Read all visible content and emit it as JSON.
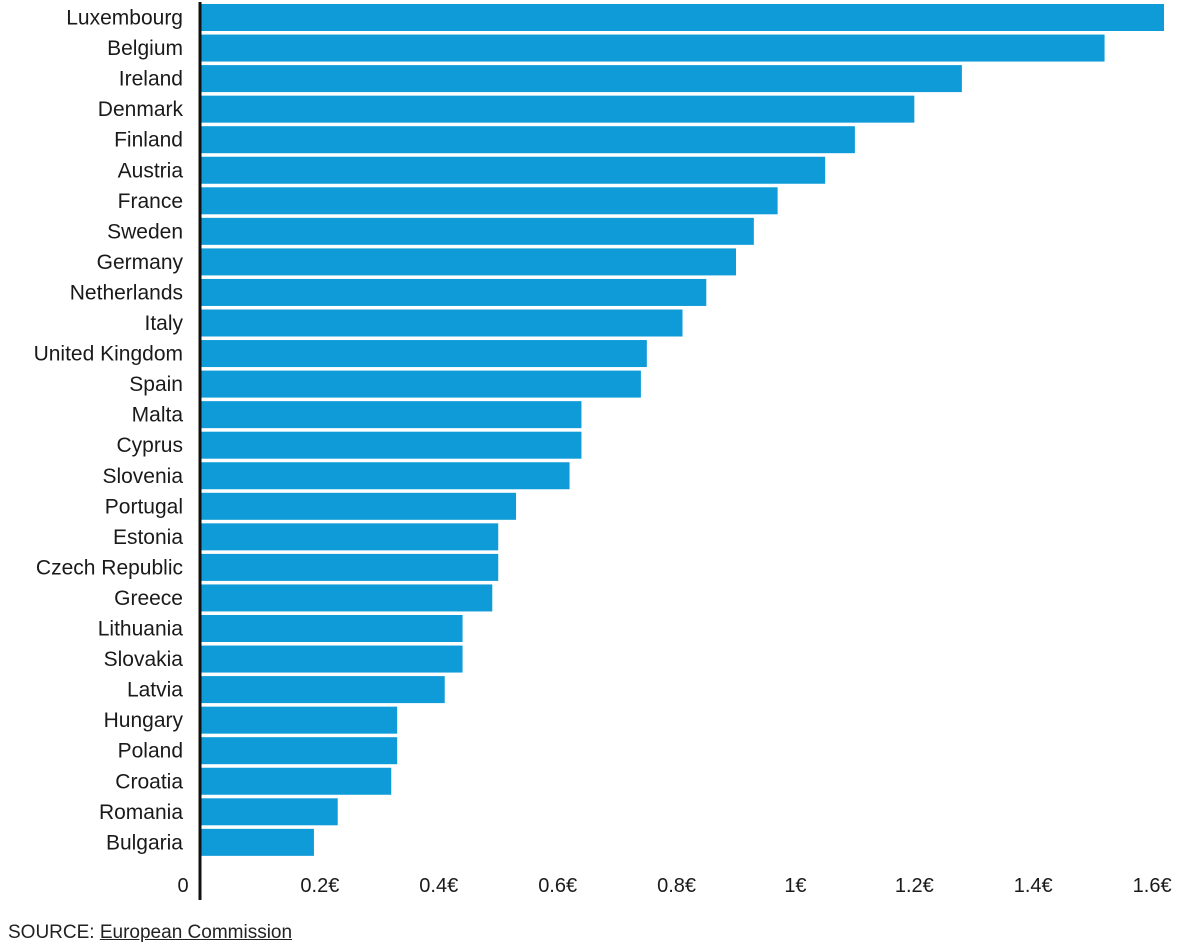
{
  "chart_data": {
    "type": "bar",
    "orientation": "horizontal",
    "categories": [
      "Luxembourg",
      "Belgium",
      "Ireland",
      "Denmark",
      "Finland",
      "Austria",
      "France",
      "Sweden",
      "Germany",
      "Netherlands",
      "Italy",
      "United Kingdom",
      "Spain",
      "Malta",
      "Cyprus",
      "Slovenia",
      "Portugal",
      "Estonia",
      "Czech Republic",
      "Greece",
      "Lithuania",
      "Slovakia",
      "Latvia",
      "Hungary",
      "Poland",
      "Croatia",
      "Romania",
      "Bulgaria"
    ],
    "values": [
      1.62,
      1.52,
      1.28,
      1.2,
      1.1,
      1.05,
      0.97,
      0.93,
      0.9,
      0.85,
      0.81,
      0.75,
      0.74,
      0.64,
      0.64,
      0.62,
      0.53,
      0.5,
      0.5,
      0.49,
      0.44,
      0.44,
      0.41,
      0.33,
      0.33,
      0.32,
      0.23,
      0.19
    ],
    "xlim": [
      0,
      1.62
    ],
    "xticks": [
      0,
      0.2,
      0.4,
      0.6,
      0.8,
      1,
      1.2,
      1.4,
      1.6
    ],
    "xtick_labels": [
      "0",
      "0.2€",
      "0.4€",
      "0.6€",
      "0.8€",
      "1€",
      "1.2€",
      "1.4€",
      "1.6€"
    ],
    "bar_color": "#0f9bd7",
    "axis_color": "#111111",
    "grid": false,
    "title": "",
    "xlabel": "",
    "ylabel": ""
  },
  "source": {
    "prefix": "SOURCE: ",
    "link_text": "European Commission"
  }
}
